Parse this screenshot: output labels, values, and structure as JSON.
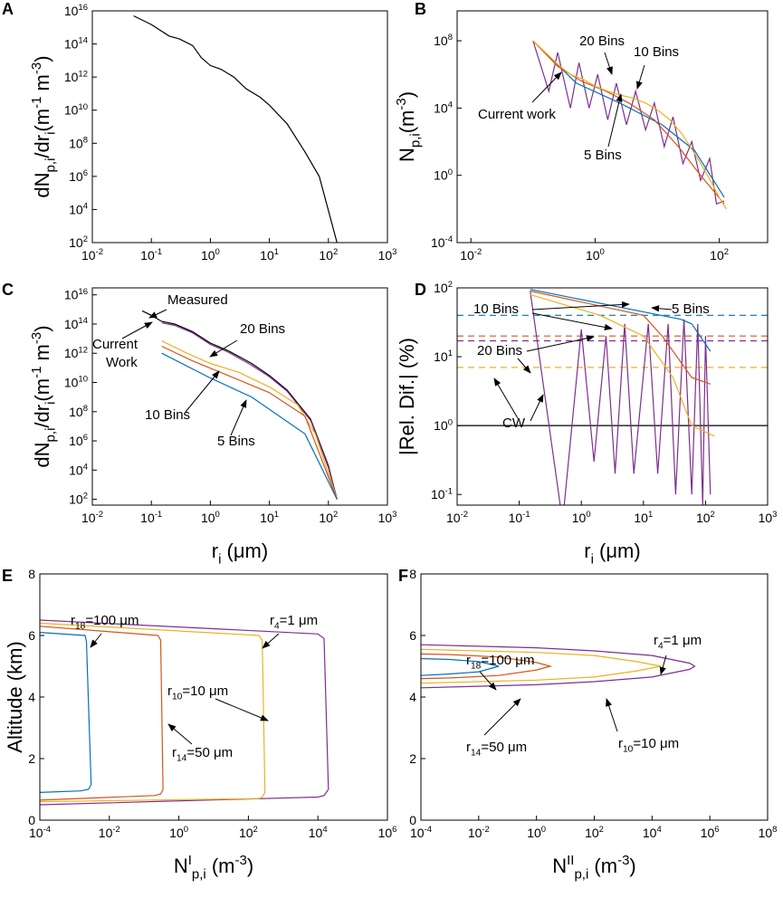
{
  "chart_data": [
    {
      "type": "line",
      "panel": "A",
      "ylabel": "dN_{p,i}/dr_{i}(m^{-1} m^{-3})",
      "xscale": "log",
      "yscale": "log",
      "xlim": [
        0.01,
        1000
      ],
      "ylim": [
        100,
        1e+16
      ],
      "xticks": [
        {
          "value": 0.01,
          "label": "10^{-2}"
        },
        {
          "value": 0.1,
          "label": "10^{-1}"
        },
        {
          "value": 1,
          "label": "10^{0}"
        },
        {
          "value": 10,
          "label": "10^{1}"
        },
        {
          "value": 100,
          "label": "10^{2}"
        },
        {
          "value": 1000,
          "label": "10^{3}"
        }
      ],
      "yticks": [
        {
          "value": 100,
          "label": "10^{2}"
        },
        {
          "value": 10000,
          "label": "10^{4}"
        },
        {
          "value": 1000000.0,
          "label": "10^{6}"
        },
        {
          "value": 100000000.0,
          "label": "10^{8}"
        },
        {
          "value": 10000000000.0,
          "label": "10^{10}"
        },
        {
          "value": 1000000000000.0,
          "label": "10^{12}"
        },
        {
          "value": 100000000000000.0,
          "label": "10^{14}"
        },
        {
          "value": 1e+16,
          "label": "10^{16}"
        }
      ],
      "series": [
        {
          "color": "#000000",
          "x": [
            0.05,
            0.1,
            0.2,
            0.3,
            0.5,
            0.7,
            1,
            1.5,
            2.5,
            4,
            7,
            10,
            20,
            40,
            70,
            140
          ],
          "values": [
            5000000000000000.0,
            1500000000000000.0,
            300000000000000.0,
            200000000000000.0,
            80000000000000.0,
            15000000000000.0,
            5000000000000.0,
            3000000000000.0,
            1000000000000.0,
            200000000000.0,
            60000000000.0,
            20000000000.0,
            1500000000.0,
            30000000.0,
            1000000.0,
            100
          ]
        }
      ],
      "annotations": []
    },
    {
      "type": "line",
      "panel": "B",
      "ylabel": "N_{p,i}(m^{-3})",
      "xscale": "log",
      "yscale": "log",
      "xlim": [
        0.006,
        600
      ],
      "ylim": [
        0.0001,
        6000000000.0
      ],
      "xticks": [
        {
          "value": 0.01,
          "label": "10^{-2}"
        },
        {
          "value": 1,
          "label": "10^{0}"
        },
        {
          "value": 100,
          "label": "10^{2}"
        }
      ],
      "yticks": [
        {
          "value": 0.0001,
          "label": "10^{-4}"
        },
        {
          "value": 1,
          "label": "10^{0}"
        },
        {
          "value": 10000,
          "label": "10^{4}"
        },
        {
          "value": 100000000.0,
          "label": "10^{8}"
        }
      ],
      "series": [
        {
          "color": "#7e2f8e",
          "x": [
            0.1,
            0.18,
            0.25,
            0.4,
            0.55,
            0.8,
            1.1,
            1.6,
            2.2,
            3.2,
            4.5,
            6.5,
            9,
            13,
            18,
            26,
            36,
            50,
            70,
            90,
            120
          ],
          "values": [
            100000000.0,
            100000,
            20000000.0,
            10000,
            5000000.0,
            10000,
            1000000.0,
            2000,
            300000,
            1000,
            100000,
            500,
            20000,
            50,
            3000,
            5,
            100,
            0.5,
            10,
            0.02,
            0.03
          ]
        },
        {
          "color": "#0072bd",
          "x": [
            0.1,
            0.5,
            2.5,
            12,
            40,
            120
          ],
          "values": [
            100000000.0,
            300000,
            20000,
            1000,
            30,
            0.05
          ]
        },
        {
          "color": "#d95319",
          "x": [
            0.1,
            0.25,
            0.6,
            1.5,
            3.5,
            9,
            22,
            50,
            120
          ],
          "values": [
            100000000.0,
            3000000.0,
            400000,
            100000,
            20000,
            2000,
            50,
            1,
            0.02
          ]
        },
        {
          "color": "#edb120",
          "x": [
            0.1,
            0.16,
            0.25,
            0.4,
            0.65,
            1,
            1.6,
            2.5,
            4,
            6.5,
            10,
            16,
            25,
            40,
            65,
            100,
            130
          ],
          "values": [
            100000000.0,
            20000000.0,
            4000000.0,
            1000000.0,
            500000,
            200000,
            100000,
            60000,
            40000,
            20000,
            8000,
            2000,
            300,
            20,
            1,
            0.05,
            0.01
          ]
        }
      ],
      "annotations": [
        "20 Bins",
        "10 Bins",
        "Current work",
        "5 Bins"
      ]
    },
    {
      "type": "line",
      "panel": "C",
      "xlabel": "r_{i} (μm)",
      "ylabel": "dN_{p,i}/dr_{i}(m^{-1} m^{-3})",
      "xscale": "log",
      "yscale": "log",
      "xlim": [
        0.01,
        1000
      ],
      "ylim": [
        40,
        3e+16
      ],
      "xticks": [
        {
          "value": 0.01,
          "label": "10^{-2}"
        },
        {
          "value": 0.1,
          "label": "10^{-1}"
        },
        {
          "value": 1,
          "label": "10^{0}"
        },
        {
          "value": 10,
          "label": "10^{1}"
        },
        {
          "value": 100,
          "label": "10^{2}"
        },
        {
          "value": 1000,
          "label": "10^{3}"
        }
      ],
      "yticks": [
        {
          "value": 100,
          "label": "10^{2}"
        },
        {
          "value": 10000,
          "label": "10^{4}"
        },
        {
          "value": 1000000.0,
          "label": "10^{6}"
        },
        {
          "value": 100000000.0,
          "label": "10^{8}"
        },
        {
          "value": 10000000000.0,
          "label": "10^{10}"
        },
        {
          "value": 1000000000000.0,
          "label": "10^{12}"
        },
        {
          "value": 100000000000000.0,
          "label": "10^{14}"
        },
        {
          "value": 1e+16,
          "label": "10^{16}"
        }
      ],
      "series": [
        {
          "color": "#000000",
          "x": [
            0.07,
            0.1,
            0.15,
            0.25,
            0.5,
            1,
            2,
            5,
            10,
            20,
            50,
            100,
            140
          ],
          "values": [
            800000000000000.0,
            400000000000000.0,
            150000000000000.0,
            100000000000000.0,
            30000000000000.0,
            5000000000000.0,
            1500000000000.0,
            200000000000.0,
            30000000000.0,
            3000000000.0,
            30000000.0,
            20000,
            100
          ]
        },
        {
          "color": "#7e2f8e",
          "x": [
            0.15,
            0.25,
            0.5,
            1,
            2,
            5,
            10,
            20,
            50,
            100,
            140
          ],
          "values": [
            120000000000000.0,
            80000000000000.0,
            25000000000000.0,
            4000000000000.0,
            1200000000000.0,
            150000000000.0,
            25000000000.0,
            2500000000.0,
            25000000.0,
            15000,
            100
          ]
        },
        {
          "color": "#edb120",
          "x": [
            0.15,
            0.4,
            1,
            3,
            10,
            30,
            60,
            140
          ],
          "values": [
            7000000000000.0,
            1000000000000.0,
            200000000000.0,
            50000000000.0,
            5000000000.0,
            300000000.0,
            3000000.0,
            100
          ]
        },
        {
          "color": "#d95319",
          "x": [
            0.15,
            0.5,
            2,
            10,
            40,
            140
          ],
          "values": [
            3000000000000.0,
            300000000000.0,
            30000000000.0,
            2000000000.0,
            50000000.0,
            100
          ]
        },
        {
          "color": "#0072bd",
          "x": [
            0.15,
            1,
            5,
            40,
            140
          ],
          "values": [
            1000000000000.0,
            20000000000.0,
            1000000000.0,
            3000000.0,
            100
          ]
        }
      ],
      "annotations": [
        "Measured",
        "20 Bins",
        "Current",
        "Work",
        "10 Bins",
        "5 Bins"
      ]
    },
    {
      "type": "line",
      "panel": "D",
      "xlabel": "r_{i} (μm)",
      "ylabel": "|Rel. Dif.| (%)",
      "xscale": "log",
      "yscale": "log",
      "xlim": [
        0.01,
        1000
      ],
      "ylim": [
        0.07,
        100
      ],
      "xticks": [
        {
          "value": 0.01,
          "label": "10^{-2}"
        },
        {
          "value": 0.1,
          "label": "10^{-1}"
        },
        {
          "value": 1,
          "label": "10^{0}"
        },
        {
          "value": 10,
          "label": "10^{1}"
        },
        {
          "value": 100,
          "label": "10^{2}"
        },
        {
          "value": 1000,
          "label": "10^{3}"
        }
      ],
      "yticks": [
        {
          "value": 0.1,
          "label": "10^{-1}"
        },
        {
          "value": 1,
          "label": "10^{0}"
        },
        {
          "value": 10,
          "label": "10^{1}"
        },
        {
          "value": 100,
          "label": "10^{2}"
        }
      ],
      "series": [
        {
          "color": "#0072bd",
          "dashed": true,
          "x": [
            0.01,
            1000
          ],
          "values": [
            40,
            40
          ]
        },
        {
          "color": "#d95319",
          "dashed": true,
          "x": [
            0.01,
            1000
          ],
          "values": [
            20,
            20
          ]
        },
        {
          "color": "#7e2f8e",
          "dashed": true,
          "x": [
            0.01,
            1000
          ],
          "values": [
            17,
            17
          ]
        },
        {
          "color": "#edb120",
          "dashed": true,
          "x": [
            0.01,
            1000
          ],
          "values": [
            7,
            7
          ]
        },
        {
          "color": "#000000",
          "x": [
            0.01,
            1000
          ],
          "values": [
            1,
            1
          ]
        },
        {
          "color": "#7e2f8e",
          "x": [
            0.15,
            0.5,
            1,
            1.6,
            2.5,
            3.5,
            5,
            7,
            12,
            17,
            25,
            33,
            45,
            60,
            75,
            90,
            100,
            120
          ],
          "values": [
            90,
            0.04,
            25,
            0.3,
            20,
            0.2,
            30,
            0.2,
            30,
            0.2,
            30,
            0.1,
            35,
            0.1,
            30,
            0.07,
            20,
            0.1
          ]
        },
        {
          "color": "#0072bd",
          "x": [
            0.15,
            40,
            60,
            120
          ],
          "values": [
            95,
            35,
            30,
            12
          ]
        },
        {
          "color": "#d95319",
          "x": [
            0.15,
            10,
            20,
            60,
            120
          ],
          "values": [
            90,
            40,
            20,
            5,
            4
          ]
        },
        {
          "color": "#edb120",
          "x": [
            0.15,
            2,
            10,
            30,
            60,
            140
          ],
          "values": [
            80,
            40,
            20,
            5,
            1,
            0.7
          ]
        }
      ],
      "annotations": [
        "10 Bins",
        "20 Bins",
        "5 Bins",
        "CW"
      ]
    },
    {
      "type": "line",
      "panel": "E",
      "xlabel": "N^{I}_{p,i} (m^{-3})",
      "ylabel": "Altitude (km)",
      "xscale": "log",
      "yscale": "linear",
      "xlim": [
        0.0001,
        1000000.0
      ],
      "ylim": [
        0,
        8
      ],
      "xticks": [
        {
          "value": 0.0001,
          "label": "10^{-4}"
        },
        {
          "value": 0.01,
          "label": "10^{-2}"
        },
        {
          "value": 1,
          "label": "10^{0}"
        },
        {
          "value": 100,
          "label": "10^{2}"
        },
        {
          "value": 10000,
          "label": "10^{4}"
        },
        {
          "value": 1000000.0,
          "label": "10^{6}"
        }
      ],
      "yticks": [
        0,
        2,
        4,
        6,
        8
      ],
      "series": [
        {
          "color": "#7e2f8e",
          "x": [
            0.0001,
            10000,
            15000,
            20000,
            15000,
            10000,
            0.0001
          ],
          "values": [
            6.5,
            6.05,
            5.9,
            1.0,
            0.8,
            0.75,
            0.5
          ]
        },
        {
          "color": "#edb120",
          "x": [
            0.0001,
            200,
            250,
            300,
            250,
            200,
            0.0001
          ],
          "values": [
            6.4,
            6.0,
            5.85,
            0.9,
            0.75,
            0.7,
            0.6
          ]
        },
        {
          "color": "#d95319",
          "x": [
            0.0001,
            0.25,
            0.3,
            0.35,
            0.3,
            0.2,
            0.0001
          ],
          "values": [
            6.3,
            6.0,
            5.85,
            1.0,
            0.85,
            0.8,
            0.65
          ]
        },
        {
          "color": "#0072bd",
          "x": [
            0.0001,
            0.002,
            0.0022,
            0.003,
            0.0025,
            0.0015,
            0.0001
          ],
          "values": [
            6.1,
            6.0,
            5.8,
            1.15,
            1.0,
            0.95,
            0.9
          ]
        }
      ],
      "annotations": [
        "r_{18}=100 μm",
        "r_{4}=1 μm",
        "r_{10}=10 μm",
        "r_{14}=50 μm"
      ]
    },
    {
      "type": "line",
      "panel": "F",
      "xlabel": "N^{II}_{p,i} (m^{-3})",
      "xscale": "log",
      "yscale": "linear",
      "xlim": [
        0.0001,
        100000000.0
      ],
      "ylim": [
        0,
        8
      ],
      "xticks": [
        {
          "value": 0.0001,
          "label": "10^{-4}"
        },
        {
          "value": 0.01,
          "label": "10^{-2}"
        },
        {
          "value": 1,
          "label": "10^{0}"
        },
        {
          "value": 100,
          "label": "10^{2}"
        },
        {
          "value": 10000,
          "label": "10^{4}"
        },
        {
          "value": 1000000.0,
          "label": "10^{6}"
        },
        {
          "value": 100000000.0,
          "label": "10^{8}"
        }
      ],
      "yticks": [
        0,
        2,
        4,
        6,
        8
      ],
      "series": [
        {
          "color": "#7e2f8e",
          "x": [
            0.0001,
            0.01,
            1,
            100,
            10000,
            200000,
            300000,
            200000,
            10000,
            100,
            1,
            0.01,
            0.0001
          ],
          "values": [
            5.7,
            5.65,
            5.6,
            5.5,
            5.35,
            5.1,
            5,
            4.9,
            4.65,
            4.5,
            4.4,
            4.35,
            4.3
          ]
        },
        {
          "color": "#edb120",
          "x": [
            0.0001,
            0.01,
            1,
            100,
            3000,
            20000,
            3000,
            100,
            1,
            0.01,
            0.0001
          ],
          "values": [
            5.55,
            5.5,
            5.45,
            5.35,
            5.15,
            5,
            4.85,
            4.65,
            4.55,
            4.5,
            4.45
          ]
        },
        {
          "color": "#d95319",
          "x": [
            0.0001,
            0.001,
            0.05,
            1,
            3,
            1,
            0.05,
            0.001,
            0.0001
          ],
          "values": [
            5.4,
            5.38,
            5.3,
            5.12,
            5,
            4.88,
            4.7,
            4.62,
            4.6
          ]
        },
        {
          "color": "#0072bd",
          "x": [
            0.0001,
            0.001,
            0.01,
            0.05,
            0.01,
            0.001,
            0.0001
          ],
          "values": [
            5.25,
            5.22,
            5.15,
            5,
            4.82,
            4.75,
            4.7
          ]
        }
      ],
      "annotations": [
        "r_{18}=100 μm",
        "r_{4}=1 μm",
        "r_{10}=10 μm",
        "r_{14}=50 μm"
      ]
    }
  ]
}
